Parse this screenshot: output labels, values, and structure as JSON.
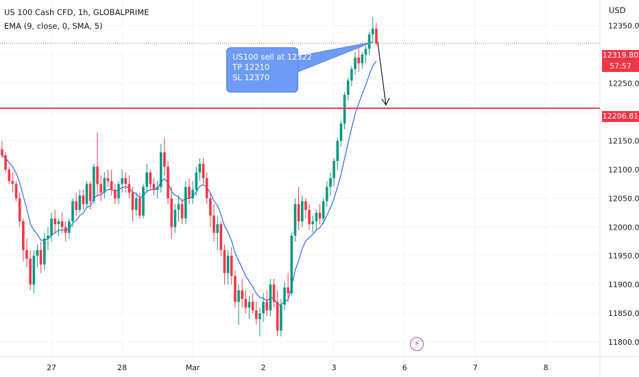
{
  "legend": {
    "symbol_line": "US 100 Cash CFD, 1h, GLOBALPRIME",
    "indicator_line": "EMA (9, close, 0, SMA, 5)"
  },
  "price_axis": {
    "currency": "USD",
    "ticks": [
      "12350.00",
      "12250.00",
      "12150.00",
      "12100.00",
      "12050.00",
      "12000.00",
      "11950.00",
      "11900.00",
      "11850.00",
      "11800.00"
    ],
    "current_price_label": "12319.80",
    "countdown_label": "57:57",
    "horizontal_line_label": "12206.81"
  },
  "time_axis": {
    "ticks": [
      "27",
      "28",
      "Mar",
      "2",
      "3",
      "6",
      "7",
      "8"
    ]
  },
  "annotation": {
    "lines": [
      "US100 sell at 12322",
      "TP 12210",
      "SL 12370"
    ]
  },
  "icons": {
    "event": "lightning-bolt-icon"
  },
  "colors": {
    "up": "#089981",
    "down": "#f23645",
    "ema": "#2962ff",
    "line": "#f23645",
    "note": "#6e9bf5"
  },
  "chart_data": {
    "type": "candlestick",
    "title": "US 100 Cash CFD, 1h, GLOBALPRIME",
    "indicator": "EMA (9, close, 0, SMA, 5)",
    "ylim": [
      11775,
      12395
    ],
    "horizontal_line": 12206.81,
    "current_price": 12319.8,
    "trade_idea": {
      "entry": 12322,
      "take_profit": 12210,
      "stop_loss": 12370,
      "direction": "sell"
    },
    "x_ticks": [
      {
        "label": "27",
        "index": 14
      },
      {
        "label": "28",
        "index": 34
      },
      {
        "label": "Mar",
        "index": 54
      },
      {
        "label": "2",
        "index": 74
      },
      {
        "label": "3",
        "index": 94
      },
      {
        "label": "6",
        "index": 114
      },
      {
        "label": "7",
        "index": 134
      },
      {
        "label": "8",
        "index": 154
      }
    ],
    "candles": [
      [
        12135,
        12150,
        12120,
        12125
      ],
      [
        12125,
        12130,
        12095,
        12100
      ],
      [
        12100,
        12105,
        12075,
        12080
      ],
      [
        12080,
        12095,
        12060,
        12075
      ],
      [
        12075,
        12080,
        12045,
        12050
      ],
      [
        12050,
        12060,
        12000,
        12010
      ],
      [
        12010,
        12015,
        11940,
        11960
      ],
      [
        11960,
        11980,
        11930,
        11945
      ],
      [
        11945,
        11960,
        11890,
        11900
      ],
      [
        11900,
        11960,
        11885,
        11950
      ],
      [
        11950,
        11970,
        11930,
        11960
      ],
      [
        11960,
        11975,
        11920,
        11935
      ],
      [
        11935,
        11990,
        11925,
        11980
      ],
      [
        11980,
        12000,
        11960,
        11985
      ],
      [
        11985,
        12025,
        11975,
        12015
      ],
      [
        12015,
        12030,
        11990,
        12005
      ],
      [
        12005,
        12015,
        11985,
        12010
      ],
      [
        12010,
        12025,
        11990,
        12000
      ],
      [
        12000,
        12010,
        11975,
        11990
      ],
      [
        11990,
        12015,
        11980,
        12010
      ],
      [
        12010,
        12050,
        12000,
        12045
      ],
      [
        12045,
        12060,
        12020,
        12030
      ],
      [
        12030,
        12065,
        12025,
        12055
      ],
      [
        12055,
        12065,
        12030,
        12040
      ],
      [
        12040,
        12080,
        12035,
        12075
      ],
      [
        12075,
        12080,
        12030,
        12045
      ],
      [
        12045,
        12110,
        12040,
        12105
      ],
      [
        12105,
        12165,
        12055,
        12075
      ],
      [
        12075,
        12090,
        12045,
        12060
      ],
      [
        12060,
        12095,
        12050,
        12085
      ],
      [
        12085,
        12100,
        12070,
        12080
      ],
      [
        12080,
        12100,
        12055,
        12065
      ],
      [
        12065,
        12075,
        12040,
        12050
      ],
      [
        12050,
        12080,
        12040,
        12075
      ],
      [
        12075,
        12100,
        12060,
        12085
      ],
      [
        12085,
        12095,
        12060,
        12075
      ],
      [
        12075,
        12090,
        12050,
        12060
      ],
      [
        12060,
        12070,
        12010,
        12030
      ],
      [
        12030,
        12060,
        12020,
        12050
      ],
      [
        12050,
        12060,
        12015,
        12020
      ],
      [
        12020,
        12075,
        12015,
        12070
      ],
      [
        12070,
        12110,
        12060,
        12095
      ],
      [
        12095,
        12100,
        12065,
        12075
      ],
      [
        12075,
        12085,
        12055,
        12065
      ],
      [
        12065,
        12080,
        12050,
        12070
      ],
      [
        12070,
        12145,
        12060,
        12130
      ],
      [
        12130,
        12155,
        12090,
        12105
      ],
      [
        12105,
        12115,
        12040,
        12050
      ],
      [
        12050,
        12070,
        11980,
        12000
      ],
      [
        12000,
        12040,
        11990,
        12030
      ],
      [
        12030,
        12055,
        12010,
        12040
      ],
      [
        12040,
        12050,
        12005,
        12015
      ],
      [
        12015,
        12080,
        12005,
        12070
      ],
      [
        12070,
        12085,
        12040,
        12050
      ],
      [
        12050,
        12080,
        12040,
        12065
      ],
      [
        12065,
        12105,
        12055,
        12095
      ],
      [
        12095,
        12120,
        12080,
        12110
      ],
      [
        12110,
        12120,
        12075,
        12085
      ],
      [
        12085,
        12095,
        12040,
        12050
      ],
      [
        12050,
        12060,
        12000,
        12020
      ],
      [
        12020,
        12040,
        11975,
        11990
      ],
      [
        11990,
        12020,
        11960,
        12005
      ],
      [
        12005,
        12010,
        11950,
        11960
      ],
      [
        11960,
        11970,
        11900,
        11920
      ],
      [
        11920,
        11960,
        11900,
        11950
      ],
      [
        11950,
        11965,
        11900,
        11915
      ],
      [
        11915,
        11925,
        11860,
        11870
      ],
      [
        11870,
        11900,
        11830,
        11890
      ],
      [
        11890,
        11910,
        11860,
        11875
      ],
      [
        11875,
        11890,
        11850,
        11860
      ],
      [
        11860,
        11880,
        11840,
        11870
      ],
      [
        11870,
        11885,
        11850,
        11855
      ],
      [
        11855,
        11870,
        11830,
        11840
      ],
      [
        11840,
        11860,
        11810,
        11850
      ],
      [
        11850,
        11885,
        11835,
        11870
      ],
      [
        11870,
        11890,
        11845,
        11855
      ],
      [
        11855,
        11910,
        11845,
        11900
      ],
      [
        11900,
        11910,
        11860,
        11870
      ],
      [
        11870,
        11890,
        11810,
        11820
      ],
      [
        11820,
        11875,
        11810,
        11865
      ],
      [
        11865,
        11905,
        11855,
        11895
      ],
      [
        11895,
        11920,
        11870,
        11885
      ],
      [
        11885,
        11990,
        11880,
        11985
      ],
      [
        11985,
        12050,
        11975,
        12040
      ],
      [
        12040,
        12070,
        11995,
        12010
      ],
      [
        12010,
        12055,
        12000,
        12045
      ],
      [
        12045,
        12050,
        12015,
        12030
      ],
      [
        12030,
        12040,
        11995,
        12005
      ],
      [
        12005,
        12020,
        11990,
        12010
      ],
      [
        12010,
        12030,
        11995,
        12025
      ],
      [
        12025,
        12040,
        12005,
        12015
      ],
      [
        12015,
        12050,
        12005,
        12045
      ],
      [
        12045,
        12080,
        12035,
        12070
      ],
      [
        12070,
        12095,
        12055,
        12085
      ],
      [
        12085,
        12120,
        12070,
        12115
      ],
      [
        12115,
        12155,
        12100,
        12150
      ],
      [
        12150,
        12185,
        12140,
        12180
      ],
      [
        12180,
        12235,
        12170,
        12230
      ],
      [
        12230,
        12260,
        12220,
        12255
      ],
      [
        12255,
        12280,
        12245,
        12275
      ],
      [
        12275,
        12305,
        12265,
        12295
      ],
      [
        12295,
        12315,
        12270,
        12285
      ],
      [
        12285,
        12305,
        12275,
        12300
      ],
      [
        12300,
        12315,
        12285,
        12310
      ],
      [
        12310,
        12340,
        12300,
        12335
      ],
      [
        12335,
        12365,
        12320,
        12345
      ],
      [
        12345,
        12355,
        12315,
        12319.8
      ]
    ]
  }
}
